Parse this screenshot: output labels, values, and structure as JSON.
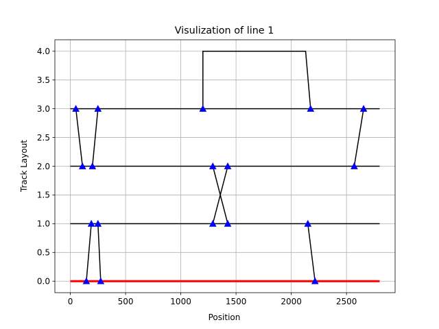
{
  "chart_data": {
    "type": "line",
    "title": "Visulization of line 1",
    "xlabel": "Position",
    "ylabel": "Track Layout",
    "xlim": [
      -140,
      2940
    ],
    "ylim": [
      -0.2,
      4.2
    ],
    "xticks": [
      0,
      500,
      1000,
      1500,
      2000,
      2500
    ],
    "yticks": [
      0.0,
      0.5,
      1.0,
      1.5,
      2.0,
      2.5,
      3.0,
      3.5,
      4.0
    ],
    "xtick_labels": [
      "0",
      "500",
      "1000",
      "1500",
      "2000",
      "2500"
    ],
    "ytick_labels": [
      "0.0",
      "0.5",
      "1.0",
      "1.5",
      "2.0",
      "2.5",
      "3.0",
      "3.5",
      "4.0"
    ],
    "grid": true,
    "colors": {
      "track": "#000000",
      "main_line": "#ff0000",
      "marker": "#0000ff"
    },
    "tracks": [
      {
        "y": 0,
        "x_start": 0,
        "x_end": 2800,
        "color": "#ff0000",
        "width": 3
      },
      {
        "y": 1,
        "x_start": 0,
        "x_end": 2800,
        "color": "#000000",
        "width": 1.5
      },
      {
        "y": 2,
        "x_start": 0,
        "x_end": 2800,
        "color": "#000000",
        "width": 1.5
      },
      {
        "y": 3,
        "x_start": 0,
        "x_end": 2800,
        "color": "#000000",
        "width": 1.5
      }
    ],
    "connectors": [
      {
        "x": [
          50,
          110
        ],
        "y": [
          3,
          2
        ]
      },
      {
        "x": [
          250,
          200
        ],
        "y": [
          3,
          2
        ]
      },
      {
        "x": [
          145,
          190
        ],
        "y": [
          0,
          1
        ]
      },
      {
        "x": [
          250,
          275
        ],
        "y": [
          1,
          0
        ]
      },
      {
        "x": [
          1290,
          1425
        ],
        "y": [
          2,
          1
        ]
      },
      {
        "x": [
          1425,
          1290
        ],
        "y": [
          2,
          1
        ]
      },
      {
        "x": [
          2150,
          2215
        ],
        "y": [
          1,
          0
        ]
      },
      {
        "x": [
          2570,
          2655
        ],
        "y": [
          2,
          3
        ]
      },
      {
        "x": [
          1200,
          1200,
          2130,
          2175
        ],
        "y": [
          3,
          4,
          4,
          3
        ]
      }
    ],
    "markers": {
      "shape": "triangle-up",
      "points": [
        {
          "x": 50,
          "y": 3
        },
        {
          "x": 110,
          "y": 2
        },
        {
          "x": 250,
          "y": 3
        },
        {
          "x": 200,
          "y": 2
        },
        {
          "x": 145,
          "y": 0
        },
        {
          "x": 190,
          "y": 1
        },
        {
          "x": 250,
          "y": 1
        },
        {
          "x": 275,
          "y": 0
        },
        {
          "x": 1290,
          "y": 2
        },
        {
          "x": 1425,
          "y": 1
        },
        {
          "x": 1425,
          "y": 2
        },
        {
          "x": 1290,
          "y": 1
        },
        {
          "x": 2150,
          "y": 1
        },
        {
          "x": 2215,
          "y": 0
        },
        {
          "x": 2570,
          "y": 2
        },
        {
          "x": 2655,
          "y": 3
        },
        {
          "x": 1200,
          "y": 3
        },
        {
          "x": 2175,
          "y": 3
        }
      ]
    }
  }
}
